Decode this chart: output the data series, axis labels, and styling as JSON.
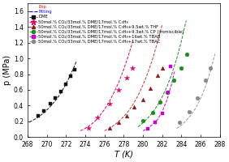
{
  "xlabel": "T (K)",
  "ylabel": "p (MPa)",
  "xlim": [
    268,
    288
  ],
  "ylim": [
    0.0,
    1.7
  ],
  "xticks": [
    268,
    270,
    272,
    274,
    276,
    278,
    280,
    282,
    284,
    286,
    288
  ],
  "yticks": [
    0.0,
    0.2,
    0.4,
    0.6,
    0.8,
    1.0,
    1.2,
    1.4,
    1.6
  ],
  "series": [
    {
      "label": "DME",
      "marker": "s",
      "marker_color": "#111111",
      "line_color": "#111111",
      "line_style": "--",
      "exp_T": [
        269.1,
        269.7,
        270.4,
        270.9,
        271.5,
        272.0,
        272.5,
        272.9
      ],
      "exp_p": [
        0.27,
        0.33,
        0.42,
        0.5,
        0.58,
        0.67,
        0.77,
        0.86
      ],
      "fit_T": [
        268.2,
        268.8,
        269.3,
        269.8,
        270.3,
        270.8,
        271.3,
        271.8,
        272.3,
        272.8,
        273.1
      ],
      "fit_p": [
        0.19,
        0.23,
        0.27,
        0.32,
        0.38,
        0.45,
        0.53,
        0.63,
        0.75,
        0.88,
        0.97
      ]
    },
    {
      "label": "50mol.% CO₂/33mol.% DME/17mol.% C₃H₈",
      "marker": "*",
      "marker_color": "#e8006a",
      "line_color": "#e8006a",
      "line_style": "--",
      "exp_T": [
        274.3,
        275.3,
        276.5,
        277.5,
        278.3,
        278.9
      ],
      "exp_p": [
        0.12,
        0.25,
        0.42,
        0.6,
        0.75,
        0.88
      ],
      "fit_T": [
        273.5,
        274.0,
        274.5,
        275.0,
        275.5,
        276.0,
        276.5,
        277.0,
        277.5,
        278.0,
        278.5,
        279.0
      ],
      "fit_p": [
        0.08,
        0.11,
        0.15,
        0.2,
        0.27,
        0.35,
        0.45,
        0.57,
        0.7,
        0.86,
        1.04,
        1.24
      ]
    },
    {
      "label": "50mol.% CO₂/33mol.% DME/17mol.% C₃H₈+9.5wt.% THF",
      "marker": "^",
      "marker_color": "#8B1a1a",
      "line_color": "#cc3333",
      "line_style": "--",
      "exp_T": [
        276.5,
        277.5,
        278.3,
        279.1,
        280.0,
        280.8,
        281.5,
        282.0
      ],
      "exp_p": [
        0.12,
        0.19,
        0.27,
        0.38,
        0.48,
        0.62,
        0.78,
        0.88
      ],
      "fit_T": [
        276.0,
        276.5,
        277.0,
        277.5,
        278.0,
        278.5,
        279.0,
        279.5,
        280.0,
        280.5,
        281.0,
        281.5,
        282.0
      ],
      "fit_p": [
        0.08,
        0.11,
        0.15,
        0.2,
        0.26,
        0.33,
        0.42,
        0.53,
        0.66,
        0.81,
        0.99,
        1.2,
        1.43
      ]
    },
    {
      "label": "50mol.% CO₂/33mol.% DME/17mol.% C₃H₈+9.3wt.% CP (immiscible)",
      "marker": "o",
      "marker_color": "#1a8c1a",
      "line_color": "#1a8c1a",
      "line_style": "--",
      "exp_T": [
        280.0,
        281.0,
        281.8,
        282.5,
        283.2,
        284.0,
        284.6
      ],
      "exp_p": [
        0.21,
        0.31,
        0.45,
        0.57,
        0.72,
        0.88,
        1.05
      ],
      "fit_T": [
        279.5,
        280.0,
        280.5,
        281.0,
        281.5,
        282.0,
        282.5,
        283.0,
        283.5,
        284.0,
        284.5
      ],
      "fit_p": [
        0.13,
        0.18,
        0.24,
        0.31,
        0.4,
        0.51,
        0.64,
        0.8,
        0.99,
        1.22,
        1.48
      ]
    },
    {
      "label": "50mol.% CO₂/33mol.% DME/17mol.% C₃H₈+16wt.% TBAB",
      "marker": "s",
      "marker_color": "#cc00cc",
      "line_color": "#cc00cc",
      "line_style": "--",
      "exp_T": [
        280.5,
        281.3,
        282.0,
        282.6,
        282.9
      ],
      "exp_p": [
        0.11,
        0.19,
        0.3,
        0.57,
        0.9
      ],
      "fit_T": [
        280.0,
        280.5,
        281.0,
        281.5,
        282.0,
        282.5,
        283.0,
        283.3
      ],
      "fit_p": [
        0.08,
        0.11,
        0.16,
        0.22,
        0.32,
        0.47,
        0.68,
        0.85
      ]
    },
    {
      "label": "50mol.% CO₂/33mol.% DME/17mol.% C₃H₈+17wt.% TBAC",
      "marker": "o",
      "marker_color": "#888888",
      "line_color": "#999999",
      "line_style": "--",
      "exp_T": [
        283.8,
        284.8,
        285.7,
        286.5,
        287.0
      ],
      "exp_p": [
        0.19,
        0.32,
        0.5,
        0.72,
        0.88
      ],
      "fit_T": [
        283.5,
        284.0,
        284.5,
        285.0,
        285.5,
        286.0,
        286.5,
        287.0,
        287.5
      ],
      "fit_p": [
        0.11,
        0.15,
        0.21,
        0.28,
        0.37,
        0.49,
        0.64,
        0.83,
        1.06
      ]
    }
  ],
  "legend_exp_color": "#ff0000",
  "legend_fit_color": "#0000ff",
  "bg_color": "#ffffff",
  "tick_fontsize": 5.5,
  "label_fontsize": 7,
  "legend_fontsize": 3.8,
  "marker_size": 12
}
